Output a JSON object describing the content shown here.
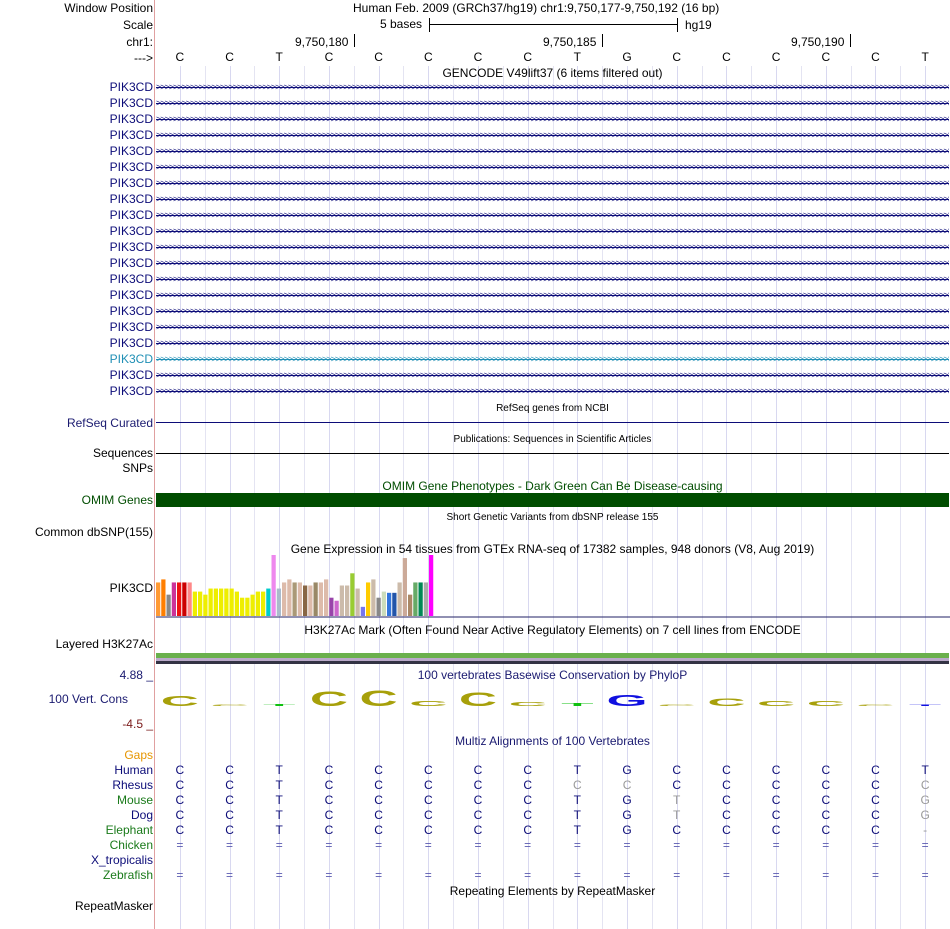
{
  "header": {
    "window_position_label": "Window Position",
    "window_position_value": "Human Feb. 2009 (GRCh37/hg19)   chr1:9,750,177-9,750,192 (16 bp)",
    "scale_label": "Scale",
    "scale_left": "5 bases",
    "scale_right": "hg19",
    "chrom_label": "chr1:",
    "strand_label": "--->",
    "ticks": [
      "9,750,180",
      "9,750,185",
      "9,750,190"
    ]
  },
  "sequence": [
    "C",
    "C",
    "T",
    "C",
    "C",
    "C",
    "C",
    "C",
    "T",
    "G",
    "C",
    "C",
    "C",
    "C",
    "C",
    "T"
  ],
  "gencode": {
    "title": "GENCODE V49lift37 (6 items filtered out)",
    "rows": [
      "PIK3CD",
      "PIK3CD",
      "PIK3CD",
      "PIK3CD",
      "PIK3CD",
      "PIK3CD",
      "PIK3CD",
      "PIK3CD",
      "PIK3CD",
      "PIK3CD",
      "PIK3CD",
      "PIK3CD",
      "PIK3CD",
      "PIK3CD",
      "PIK3CD",
      "PIK3CD",
      "PIK3CD",
      "PIK3CD",
      "PIK3CD",
      "PIK3CD"
    ],
    "highlight_index": 17,
    "arrow_glyph": ">>>>>>>>>>>>>>>>>>>>>>>>>>>>>>>>>>>>>>>>>>>>>>>>>>>>>>>>>>>>>>>>>>>>>>>>>>>>>>>>>>>>>>>>>>>>>>>>>>>>>>>>>>>>>>>>>>>>>>>>>>>>>>>>>>>>>>>>>>>>>>>>>>>>>>>>>>>>>>>>>>>>>>>>>>>>>>>>>>>>>>>>>>>>>>>>>>>>>>>>>>>>>>>>>",
    "color": "#0c0c78",
    "highlight_color": "#1f8fb5"
  },
  "refseq": {
    "title": "RefSeq genes from NCBI",
    "label": "RefSeq Curated"
  },
  "publications": {
    "title": "Publications: Sequences in Scientific Articles",
    "label": "Sequences"
  },
  "snps": {
    "label": "SNPs"
  },
  "omim": {
    "title": "OMIM Gene Phenotypes - Dark Green Can Be Disease-causing",
    "label": "OMIM Genes",
    "color": "#004d00"
  },
  "dbsnp": {
    "title": "Short Genetic Variants from dbSNP release 155",
    "label": "Common dbSNP(155)"
  },
  "gtex": {
    "title": "Gene Expression in 54 tissues from GTEx RNA-seq of 17382 samples, 948 donors (V8, Aug 2019)",
    "label": "PIK3CD",
    "bars": [
      {
        "v": 0.55,
        "c": "#ff9933"
      },
      {
        "v": 0.6,
        "c": "#ff7f00"
      },
      {
        "v": 0.35,
        "c": "#888888"
      },
      {
        "v": 0.55,
        "c": "#cc3399"
      },
      {
        "v": 0.55,
        "c": "#ee1111"
      },
      {
        "v": 0.55,
        "c": "#cc0000"
      },
      {
        "v": 0.55,
        "c": "#ff8888"
      },
      {
        "v": 0.4,
        "c": "#eeee00"
      },
      {
        "v": 0.4,
        "c": "#eeee00"
      },
      {
        "v": 0.35,
        "c": "#eeee00"
      },
      {
        "v": 0.45,
        "c": "#eeee00"
      },
      {
        "v": 0.45,
        "c": "#eeee00"
      },
      {
        "v": 0.45,
        "c": "#eeee00"
      },
      {
        "v": 0.45,
        "c": "#eeee00"
      },
      {
        "v": 0.45,
        "c": "#eeee00"
      },
      {
        "v": 0.4,
        "c": "#eeee00"
      },
      {
        "v": 0.3,
        "c": "#eeee00"
      },
      {
        "v": 0.3,
        "c": "#eeee00"
      },
      {
        "v": 0.35,
        "c": "#eeee00"
      },
      {
        "v": 0.4,
        "c": "#eeee00"
      },
      {
        "v": 0.4,
        "c": "#eeee00"
      },
      {
        "v": 0.45,
        "c": "#00cccc"
      },
      {
        "v": 1.0,
        "c": "#ee88ee"
      },
      {
        "v": 0.45,
        "c": "#aabbcc"
      },
      {
        "v": 0.55,
        "c": "#ddbbaa"
      },
      {
        "v": 0.6,
        "c": "#ddbbaa"
      },
      {
        "v": 0.55,
        "c": "#aa9977"
      },
      {
        "v": 0.55,
        "c": "#ddbbaa"
      },
      {
        "v": 0.5,
        "c": "#886644"
      },
      {
        "v": 0.5,
        "c": "#ddbbaa"
      },
      {
        "v": 0.55,
        "c": "#998866"
      },
      {
        "v": 0.55,
        "c": "#ddbbaa"
      },
      {
        "v": 0.6,
        "c": "#ddbbaa"
      },
      {
        "v": 0.3,
        "c": "#9944aa"
      },
      {
        "v": 0.25,
        "c": "#cc66cc"
      },
      {
        "v": 0.5,
        "c": "#ccbbaa"
      },
      {
        "v": 0.5,
        "c": "#ccbbaa"
      },
      {
        "v": 0.7,
        "c": "#99cc33"
      },
      {
        "v": 0.45,
        "c": "#ccbbaa"
      },
      {
        "v": 0.15,
        "c": "#7777ee"
      },
      {
        "v": 0.55,
        "c": "#ffcc00"
      },
      {
        "v": 0.6,
        "c": "#ccbbaa"
      },
      {
        "v": 0.3,
        "c": "#888888"
      },
      {
        "v": 0.4,
        "c": "#ccddbb"
      },
      {
        "v": 0.38,
        "c": "#3377dd"
      },
      {
        "v": 0.38,
        "c": "#2255aa"
      },
      {
        "v": 0.55,
        "c": "#ccbbaa"
      },
      {
        "v": 0.95,
        "c": "#ccaa99"
      },
      {
        "v": 0.35,
        "c": "#aa8866"
      },
      {
        "v": 0.55,
        "c": "#66aa66"
      },
      {
        "v": 0.55,
        "c": "#008855"
      },
      {
        "v": 0.55,
        "c": "#aaaaaa"
      },
      {
        "v": 1.0,
        "c": "#ff00ff"
      }
    ]
  },
  "h3k27ac": {
    "title": "H3K27Ac Mark (Often Found Near Active Regulatory Elements) on 7 cell lines from ENCODE",
    "label": "Layered H3K27Ac"
  },
  "phylop": {
    "title": "100 vertebrates Basewise Conservation by PhyloP",
    "label": "100 Vert. Cons",
    "max_label": "4.88 _",
    "min_label": "-4.5 _",
    "scores": [
      2.1,
      0.3,
      0.4,
      3.0,
      3.2,
      1.0,
      2.8,
      0.8,
      0.6,
      2.2,
      0.0,
      1.5,
      1.0,
      1.0,
      0.0,
      -0.3
    ],
    "colors": [
      "#a7a00a",
      "#a7a00a",
      "#10c010",
      "#a7a00a",
      "#a7a00a",
      "#a7a00a",
      "#a7a00a",
      "#a7a00a",
      "#10c010",
      "#1010e0",
      "#a7a00a",
      "#a7a00a",
      "#a7a00a",
      "#a7a00a",
      "#a7a00a",
      "#1010e0"
    ]
  },
  "multiz": {
    "title": "Multiz Alignments of 100 Vertebrates",
    "gaps_label": "Gaps",
    "species": [
      {
        "name": "Human",
        "color": "#0c0c78",
        "seq": [
          "C",
          "C",
          "T",
          "C",
          "C",
          "C",
          "C",
          "C",
          "T",
          "G",
          "C",
          "C",
          "C",
          "C",
          "C",
          "T"
        ],
        "dim": []
      },
      {
        "name": "Rhesus",
        "color": "#0c0c78",
        "seq": [
          "C",
          "C",
          "T",
          "C",
          "C",
          "C",
          "C",
          "C",
          "C",
          "C",
          "C",
          "C",
          "C",
          "C",
          "C",
          "C"
        ],
        "dim": [
          8,
          9,
          15
        ]
      },
      {
        "name": "Mouse",
        "color": "#1a7a1a",
        "seq": [
          "C",
          "C",
          "T",
          "C",
          "C",
          "C",
          "C",
          "C",
          "T",
          "G",
          "T",
          "C",
          "C",
          "C",
          "C",
          "G"
        ],
        "dim": [
          10,
          15
        ]
      },
      {
        "name": "Dog",
        "color": "#0c0c78",
        "seq": [
          "C",
          "C",
          "T",
          "C",
          "C",
          "C",
          "C",
          "C",
          "T",
          "G",
          "T",
          "C",
          "C",
          "C",
          "C",
          "G"
        ],
        "dim": [
          10,
          15
        ]
      },
      {
        "name": "Elephant",
        "color": "#1a7a1a",
        "seq": [
          "C",
          "C",
          "T",
          "C",
          "C",
          "C",
          "C",
          "C",
          "T",
          "G",
          "C",
          "C",
          "C",
          "C",
          "C",
          "-"
        ],
        "dim": [
          15
        ]
      },
      {
        "name": "Chicken",
        "color": "#1a7a1a",
        "seq": [
          "=",
          "=",
          "=",
          "=",
          "=",
          "=",
          "=",
          "=",
          "=",
          "=",
          "=",
          "=",
          "=",
          "=",
          "=",
          "="
        ],
        "dim": []
      },
      {
        "name": "X_tropicalis",
        "color": "#0c0c78",
        "seq": [],
        "dim": []
      },
      {
        "name": "Zebrafish",
        "color": "#1a7a1a",
        "seq": [
          "=",
          "=",
          "=",
          "=",
          "=",
          "=",
          "=",
          "=",
          "=",
          "=",
          "=",
          "=",
          "=",
          "=",
          "=",
          "="
        ],
        "dim": []
      }
    ]
  },
  "repeatmasker": {
    "title": "Repeating Elements by RepeatMasker",
    "label": "RepeatMasker"
  }
}
